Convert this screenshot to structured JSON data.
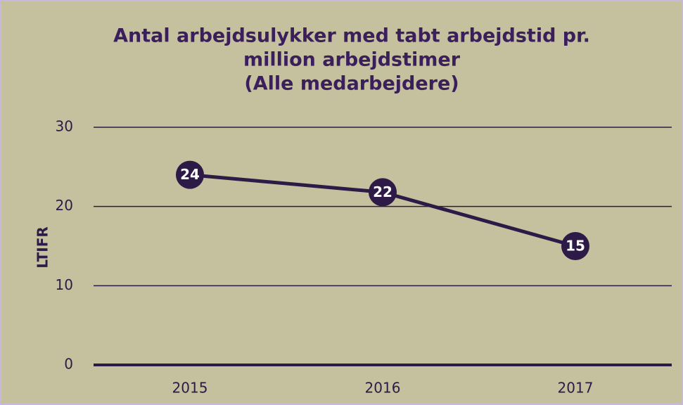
{
  "chart_data": {
    "type": "line",
    "title": [
      "Antal arbejdsulykker med tabt arbejdstid pr.",
      "million arbejdstimer",
      "(Alle medarbejdere)"
    ],
    "y_label": "LTIFR",
    "categories": [
      "2015",
      "2016",
      "2017"
    ],
    "series": [
      {
        "name": "LTIFR",
        "color": "#2e1a47",
        "values": [
          24,
          21.8,
          15
        ],
        "value_labels": [
          "24",
          "22",
          "15"
        ]
      }
    ],
    "ylim": [
      0,
      30
    ],
    "yticks": [
      0,
      10,
      20,
      30
    ],
    "grid": true,
    "background": "#c5c09d"
  }
}
